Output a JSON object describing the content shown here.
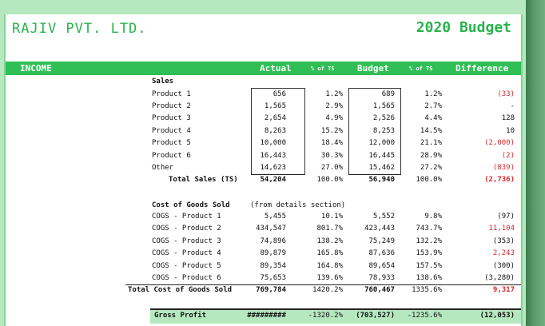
{
  "company": "RAJIV PVT. LTD.",
  "budget_title": "2020 Budget",
  "header": {
    "section": "INCOME",
    "actual": "Actual",
    "pct_ts_1": "% of TS",
    "budget": "Budget",
    "pct_ts_2": "% of TS",
    "difference": "Difference"
  },
  "sales": {
    "heading": "Sales",
    "rows": [
      {
        "label": "Product 1",
        "actual": "656",
        "pct1": "1.2%",
        "budget": "689",
        "pct2": "1.2%",
        "diff": "(33)",
        "neg": true
      },
      {
        "label": "Product 2",
        "actual": "1,565",
        "pct1": "2.9%",
        "budget": "1,565",
        "pct2": "2.7%",
        "diff": "-",
        "neg": false
      },
      {
        "label": "Product 3",
        "actual": "2,654",
        "pct1": "4.9%",
        "budget": "2,526",
        "pct2": "4.4%",
        "diff": "128",
        "neg": false
      },
      {
        "label": "Product 4",
        "actual": "8,263",
        "pct1": "15.2%",
        "budget": "8,253",
        "pct2": "14.5%",
        "diff": "10",
        "neg": false
      },
      {
        "label": "Product 5",
        "actual": "10,000",
        "pct1": "18.4%",
        "budget": "12,000",
        "pct2": "21.1%",
        "diff": "(2,000)",
        "neg": true
      },
      {
        "label": "Product 6",
        "actual": "16,443",
        "pct1": "30.3%",
        "budget": "16,445",
        "pct2": "28.9%",
        "diff": "(2)",
        "neg": true
      },
      {
        "label": "Other",
        "actual": "14,623",
        "pct1": "27.0%",
        "budget": "15,462",
        "pct2": "27.2%",
        "diff": "(839)",
        "neg": true
      }
    ],
    "total": {
      "label": "Total Sales (TS)",
      "actual": "54,204",
      "pct1": "100.0%",
      "budget": "56,940",
      "pct2": "100.0%",
      "diff": "(2,736)"
    }
  },
  "cogs": {
    "heading": "Cost of Goods Sold",
    "heading_note": "(from details section)",
    "rows": [
      {
        "label": "COGS - Product 1",
        "actual": "5,455",
        "pct1": "10.1%",
        "budget": "5,552",
        "pct2": "9.8%",
        "diff": "(97)",
        "neg": false
      },
      {
        "label": "COGS - Product 2",
        "actual": "434,547",
        "pct1": "801.7%",
        "budget": "423,443",
        "pct2": "743.7%",
        "diff": "11,104",
        "neg": true
      },
      {
        "label": "COGS - Product 3",
        "actual": "74,896",
        "pct1": "138.2%",
        "budget": "75,249",
        "pct2": "132.2%",
        "diff": "(353)",
        "neg": false
      },
      {
        "label": "COGS - Product 4",
        "actual": "89,879",
        "pct1": "165.8%",
        "budget": "87,636",
        "pct2": "153.9%",
        "diff": "2,243",
        "neg": true
      },
      {
        "label": "COGS - Product 5",
        "actual": "89,354",
        "pct1": "164.8%",
        "budget": "89,654",
        "pct2": "157.5%",
        "diff": "(300)",
        "neg": false
      },
      {
        "label": "COGS - Product 6",
        "actual": "75,653",
        "pct1": "139.6%",
        "budget": "78,933",
        "pct2": "138.6%",
        "diff": "(3,280)",
        "neg": false
      }
    ],
    "total": {
      "label": "Total Cost of Goods Sold",
      "actual": "769,784",
      "pct1": "1420.2%",
      "budget": "760,467",
      "pct2": "1335.6%",
      "diff": "9,317"
    }
  },
  "gross_profit": {
    "label": "Gross Profit",
    "actual": "#########",
    "pct1": "-1320.2%",
    "budget": "(703,527)",
    "pct2": "-1235.6%",
    "diff": "(12,053)"
  },
  "colors": {
    "accent": "#2fbf55",
    "negative": "#d9262a",
    "background": "#b5e8bf"
  }
}
